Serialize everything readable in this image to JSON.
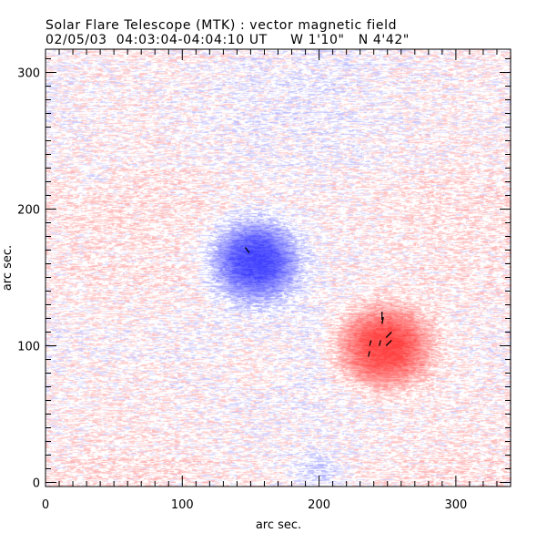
{
  "chart_data": {
    "type": "heatmap",
    "title": "Solar Flare Telescope (MTK) : vector magnetic field",
    "subtitle": "02/05/03  04:03:04-04:04:10 UT     W 1'10\"   N 4'42\"",
    "xlabel": "arc sec.",
    "ylabel": "arc sec.",
    "xlim": [
      0,
      340
    ],
    "ylim": [
      -3,
      317
    ],
    "x_ticks": [
      "0",
      "100",
      "200",
      "300"
    ],
    "y_ticks": [
      "0",
      "100",
      "200",
      "300"
    ],
    "x_tick_values": [
      0,
      100,
      200,
      300
    ],
    "y_tick_values": [
      0,
      100,
      200,
      300
    ],
    "minor_tick_step": 10,
    "colors": {
      "negative": "#3f4fff",
      "positive": "#ff3f3f",
      "vector": "#000000"
    },
    "sources": [
      {
        "polarity": "negative",
        "center": [
          153,
          163
        ],
        "radius": [
          30,
          28
        ],
        "peak": 1.0
      },
      {
        "polarity": "positive",
        "center": [
          247,
          100
        ],
        "radius": [
          33,
          28
        ],
        "peak": 1.0
      },
      {
        "polarity": "negative",
        "center": [
          200,
          10
        ],
        "radius": [
          18,
          12
        ],
        "peak": 0.25
      },
      {
        "polarity": "negative",
        "center": [
          35,
          225
        ],
        "radius": [
          10,
          8
        ],
        "peak": 0.15
      },
      {
        "polarity": "positive",
        "center": [
          155,
          90
        ],
        "radius": [
          30,
          20
        ],
        "peak": 0.12
      }
    ],
    "vectors": [
      {
        "x": 146,
        "y": 172,
        "dx": 3,
        "dy": -4
      },
      {
        "x": 246,
        "y": 125,
        "dx": 0,
        "dy": -6
      },
      {
        "x": 246,
        "y": 116,
        "dx": 1,
        "dy": 5
      },
      {
        "x": 253,
        "y": 110,
        "dx": -4,
        "dy": -4
      },
      {
        "x": 238,
        "y": 104,
        "dx": -1,
        "dy": -4
      },
      {
        "x": 245,
        "y": 104,
        "dx": -1,
        "dy": -4
      },
      {
        "x": 253,
        "y": 104,
        "dx": -4,
        "dy": -4
      },
      {
        "x": 237,
        "y": 96,
        "dx": -1,
        "dy": -4
      }
    ]
  }
}
